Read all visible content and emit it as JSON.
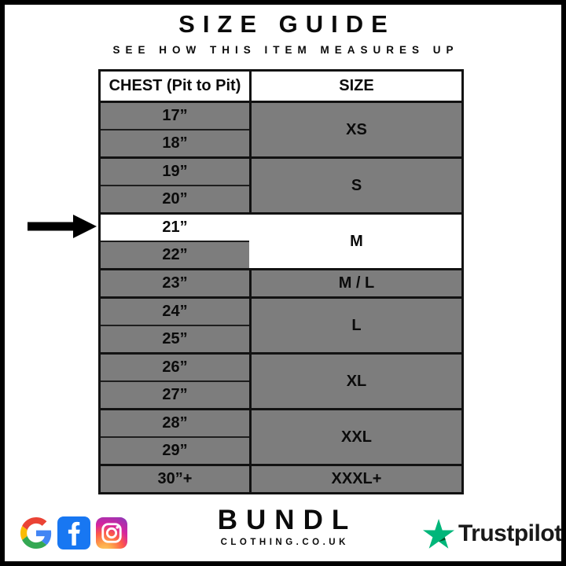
{
  "header": {
    "title": "SIZE GUIDE",
    "subtitle": "SEE HOW THIS ITEM MEASURES UP"
  },
  "table": {
    "columns": [
      "CHEST (Pit to Pit)",
      "SIZE"
    ],
    "groups": [
      {
        "size": "XS",
        "chest": [
          "17”",
          "18”"
        ],
        "highlighted": false
      },
      {
        "size": "S",
        "chest": [
          "19”",
          "20”"
        ],
        "highlighted": false
      },
      {
        "size": "M",
        "chest": [
          "21”",
          "22”"
        ],
        "highlighted": true,
        "highlight_index": 0
      },
      {
        "size": "M / L",
        "chest": [
          "23”"
        ],
        "highlighted": false
      },
      {
        "size": "L",
        "chest": [
          "24”",
          "25”"
        ],
        "highlighted": false
      },
      {
        "size": "XL",
        "chest": [
          "26”",
          "27”"
        ],
        "highlighted": false
      },
      {
        "size": "XXL",
        "chest": [
          "28”",
          "29”"
        ],
        "highlighted": false
      },
      {
        "size": "XXXL+",
        "chest": [
          "30”+"
        ],
        "highlighted": false
      }
    ]
  },
  "indicator": {
    "icon": "arrow-right-icon",
    "points_to": "21”"
  },
  "footer": {
    "social_icons": [
      "google-icon",
      "facebook-icon",
      "instagram-icon"
    ],
    "brand_name": "BUNDL",
    "brand_domain": "CLOTHING.CO.UK",
    "trustpilot_label": "Trustpilot",
    "trustpilot_icon": "trustpilot-star-icon"
  },
  "colors": {
    "row_gray": "#7d7d7d",
    "highlight_white": "#ffffff",
    "border_black": "#121212",
    "facebook_blue": "#1877F2",
    "trustpilot_green": "#00B67A",
    "trustpilot_dark_green": "#005128",
    "google_red": "#EA4335",
    "google_blue": "#4285F4",
    "google_yellow": "#FBBC05",
    "google_green": "#34A853"
  },
  "chart_data": {
    "type": "table",
    "title": "SIZE GUIDE",
    "subtitle": "SEE HOW THIS ITEM MEASURES UP",
    "columns": [
      "CHEST (Pit to Pit)",
      "SIZE"
    ],
    "rows": [
      [
        "17”",
        "XS"
      ],
      [
        "18”",
        "XS"
      ],
      [
        "19”",
        "S"
      ],
      [
        "20”",
        "S"
      ],
      [
        "21”",
        "M"
      ],
      [
        "22”",
        "M"
      ],
      [
        "23”",
        "M / L"
      ],
      [
        "24”",
        "L"
      ],
      [
        "25”",
        "L"
      ],
      [
        "26”",
        "XL"
      ],
      [
        "27”",
        "XL"
      ],
      [
        "28”",
        "XXL"
      ],
      [
        "29”",
        "XXL"
      ],
      [
        "30”+",
        "XXXL+"
      ]
    ],
    "highlighted_row": [
      "21”",
      "M"
    ],
    "legend_position": "none",
    "grid": true
  }
}
